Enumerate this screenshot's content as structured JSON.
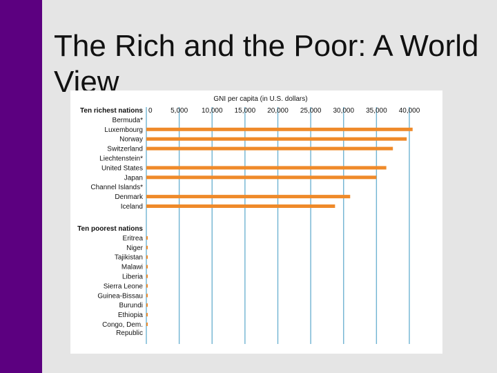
{
  "slide": {
    "title": "The Rich and the Poor: A World View"
  },
  "colors": {
    "sidebar": "#5c0080",
    "bar": "#ef8a2a",
    "gridline": "#6fb3d2",
    "background": "#e5e5e5"
  },
  "chart_data": {
    "type": "bar",
    "orientation": "horizontal",
    "title": "GNI per capita (in U.S. dollars)",
    "xlabel": "GNI per capita (in U.S. dollars)",
    "xlim": [
      0,
      40000
    ],
    "x_ticks": [
      0,
      5000,
      10000,
      15000,
      20000,
      25000,
      30000,
      35000,
      40000
    ],
    "x_tick_labels": [
      "0",
      "5,000",
      "10,000",
      "15,000",
      "20,000",
      "25,000",
      "30,000",
      "35,000",
      "40,000"
    ],
    "grid": true,
    "groups": [
      {
        "name": "Ten richest nations",
        "categories": [
          "Bermuda*",
          "Luxembourg",
          "Norway",
          "Switzerland",
          "Liechtenstein*",
          "United States",
          "Japan",
          "Channel Islands*",
          "Denmark",
          "Iceland"
        ],
        "values": [
          null,
          40500,
          39600,
          37500,
          null,
          36500,
          35000,
          null,
          31000,
          28700
        ]
      },
      {
        "name": "Ten poorest nations",
        "categories": [
          "Eritrea",
          "Niger",
          "Tajikistan",
          "Malawi",
          "Liberia",
          "Sierra Leone",
          "Guinea-Bissau",
          "Burundi",
          "Ethiopia",
          "Congo, Dem. Republic"
        ],
        "values": [
          190,
          200,
          190,
          170,
          140,
          140,
          150,
          100,
          90,
          100
        ]
      }
    ]
  }
}
